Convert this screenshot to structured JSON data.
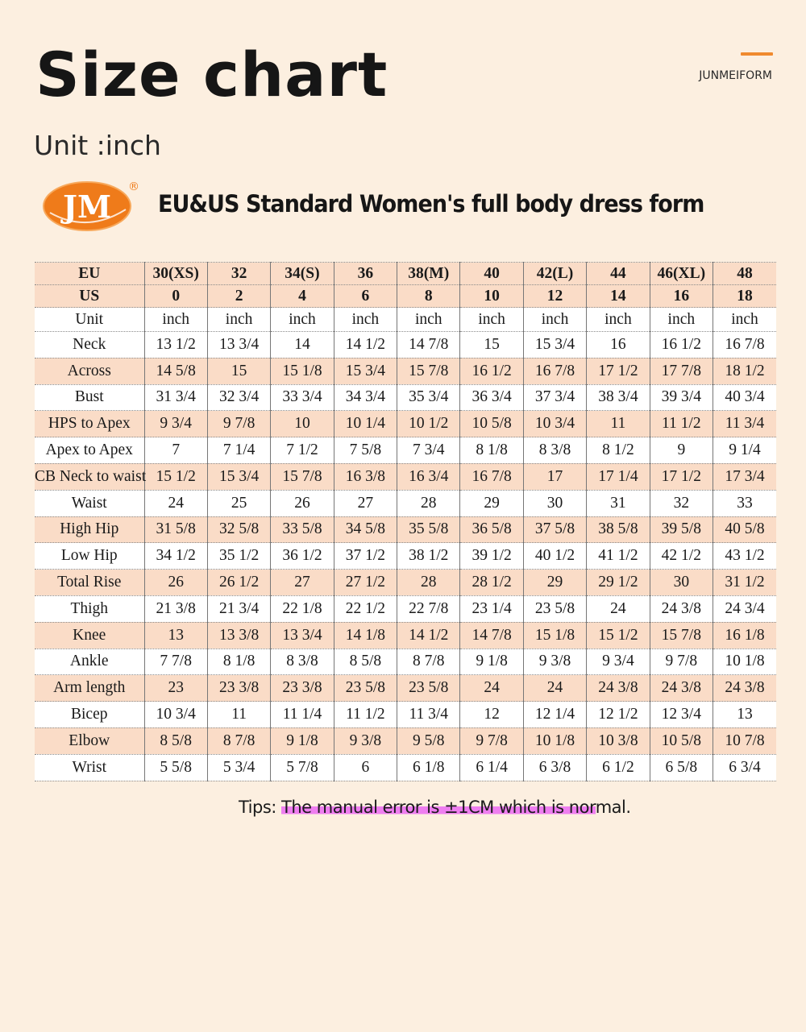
{
  "header": {
    "title": "Size chart",
    "brand": "JUNMEIFORM",
    "unit_label": "Unit :inch"
  },
  "logo": {
    "text": "JM",
    "registered": "®"
  },
  "product_title": "EU&US Standard Women's full body dress form",
  "table": {
    "columns_label": "EU",
    "eu_sizes": [
      "30(XS)",
      "32",
      "34(S)",
      "36",
      "38(M)",
      "40",
      "42(L)",
      "44",
      "46(XL)",
      "48"
    ],
    "us_label": "US",
    "us_sizes": [
      "0",
      "2",
      "4",
      "6",
      "8",
      "10",
      "12",
      "14",
      "16",
      "18"
    ],
    "unit_label": "Unit",
    "unit_values": [
      "inch",
      "inch",
      "inch",
      "inch",
      "inch",
      "inch",
      "inch",
      "inch",
      "inch",
      "inch"
    ],
    "rows": [
      {
        "label": "Neck",
        "values": [
          "13 1/2",
          "13 3/4",
          "14",
          "14 1/2",
          "14 7/8",
          "15",
          "15 3/4",
          "16",
          "16 1/2",
          "16 7/8"
        ]
      },
      {
        "label": "Across",
        "values": [
          "14 5/8",
          "15",
          "15 1/8",
          "15 3/4",
          "15 7/8",
          "16 1/2",
          "16 7/8",
          "17 1/2",
          "17 7/8",
          "18 1/2"
        ]
      },
      {
        "label": "Bust",
        "values": [
          "31 3/4",
          "32 3/4",
          "33 3/4",
          "34 3/4",
          "35 3/4",
          "36 3/4",
          "37 3/4",
          "38 3/4",
          "39 3/4",
          "40 3/4"
        ]
      },
      {
        "label": "HPS to Apex",
        "values": [
          "9 3/4",
          "9 7/8",
          "10",
          "10 1/4",
          "10 1/2",
          "10 5/8",
          "10 3/4",
          "11",
          "11 1/2",
          "11 3/4"
        ]
      },
      {
        "label": "Apex to Apex",
        "values": [
          "7",
          "7 1/4",
          "7 1/2",
          "7 5/8",
          "7 3/4",
          "8 1/8",
          "8 3/8",
          "8 1/2",
          "9",
          "9 1/4"
        ]
      },
      {
        "label": "CB Neck to waist",
        "values": [
          "15 1/2",
          "15 3/4",
          "15 7/8",
          "16 3/8",
          "16 3/4",
          "16 7/8",
          "17",
          "17 1/4",
          "17 1/2",
          "17 3/4"
        ]
      },
      {
        "label": "Waist",
        "values": [
          "24",
          "25",
          "26",
          "27",
          "28",
          "29",
          "30",
          "31",
          "32",
          "33"
        ]
      },
      {
        "label": "High Hip",
        "values": [
          "31 5/8",
          "32 5/8",
          "33 5/8",
          "34 5/8",
          "35 5/8",
          "36 5/8",
          "37 5/8",
          "38 5/8",
          "39 5/8",
          "40 5/8"
        ]
      },
      {
        "label": "Low Hip",
        "values": [
          "34 1/2",
          "35 1/2",
          "36 1/2",
          "37 1/2",
          "38 1/2",
          "39 1/2",
          "40 1/2",
          "41 1/2",
          "42 1/2",
          "43 1/2"
        ]
      },
      {
        "label": "Total Rise",
        "values": [
          "26",
          "26 1/2",
          "27",
          "27 1/2",
          "28",
          "28 1/2",
          "29",
          "29 1/2",
          "30",
          "31 1/2"
        ]
      },
      {
        "label": "Thigh",
        "values": [
          "21 3/8",
          "21 3/4",
          "22 1/8",
          "22 1/2",
          "22 7/8",
          "23 1/4",
          "23 5/8",
          "24",
          "24 3/8",
          "24 3/4"
        ]
      },
      {
        "label": "Knee",
        "values": [
          "13",
          "13 3/8",
          "13 3/4",
          "14 1/8",
          "14 1/2",
          "14 7/8",
          "15 1/8",
          "15 1/2",
          "15 7/8",
          "16 1/8"
        ]
      },
      {
        "label": "Ankle",
        "values": [
          "7 7/8",
          "8 1/8",
          "8 3/8",
          "8 5/8",
          "8 7/8",
          "9 1/8",
          "9 3/8",
          "9 3/4",
          "9 7/8",
          "10 1/8"
        ]
      },
      {
        "label": "Arm length",
        "values": [
          "23",
          "23 3/8",
          "23 3/8",
          "23 5/8",
          "23 5/8",
          "24",
          "24",
          "24 3/8",
          "24 3/8",
          "24 3/8"
        ]
      },
      {
        "label": "Bicep",
        "values": [
          "10 3/4",
          "11",
          "11 1/4",
          "11 1/2",
          "11 3/4",
          "12",
          "12 1/4",
          "12 1/2",
          "12 3/4",
          "13"
        ]
      },
      {
        "label": "Elbow",
        "values": [
          "8 5/8",
          "8 7/8",
          "9 1/8",
          "9 3/8",
          "9 5/8",
          "9 7/8",
          "10 1/8",
          "10 3/8",
          "10 5/8",
          "10 7/8"
        ]
      },
      {
        "label": "Wrist",
        "values": [
          "5 5/8",
          "5 3/4",
          "5 7/8",
          "6",
          "6 1/8",
          "6 1/4",
          "6 3/8",
          "6 1/2",
          "6 5/8",
          "6 3/4"
        ]
      }
    ]
  },
  "tips": {
    "prefix": "Tips: ",
    "highlight": "The manual error is ±1CM which is nor",
    "suffix": "mal."
  },
  "colors": {
    "background": "#fcefe0",
    "row_shade": "#fadcc7",
    "row_white": "#ffffff",
    "accent": "#f08a2e",
    "highlight": "#ee7ef0",
    "logo_orange": "#ef7b1a"
  }
}
